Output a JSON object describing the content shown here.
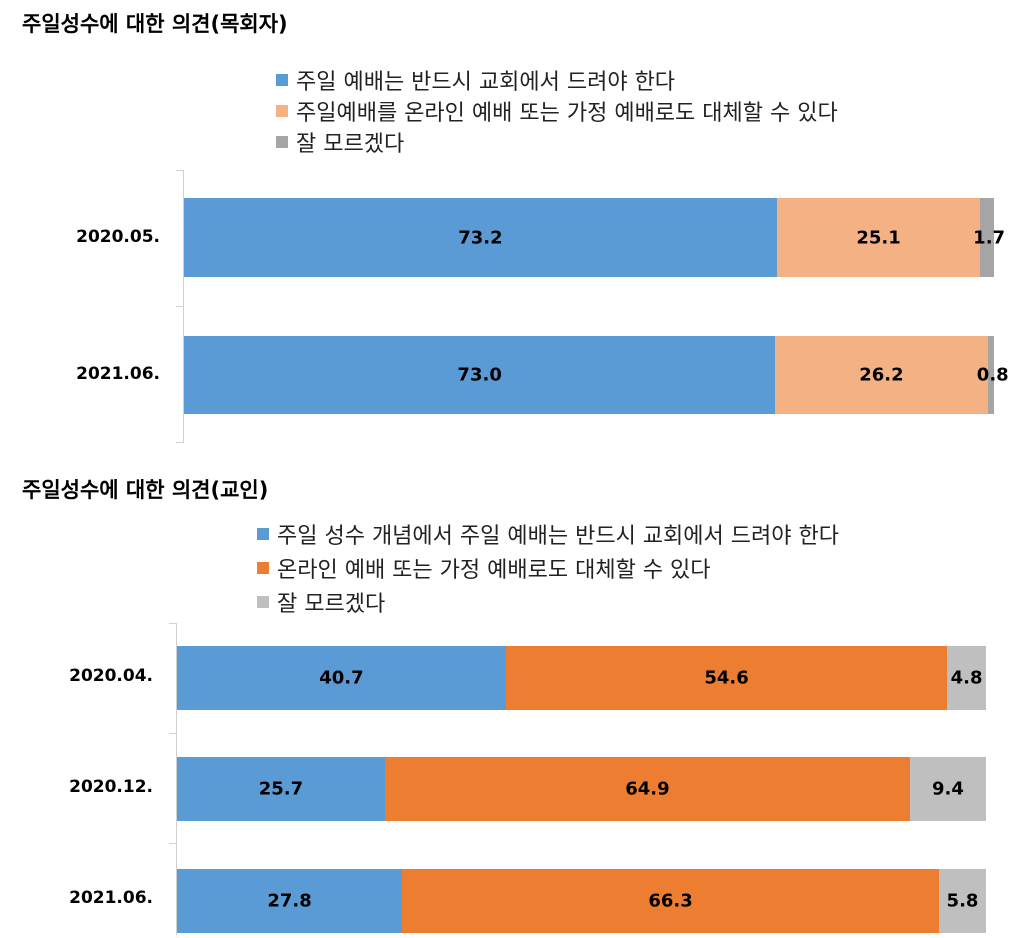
{
  "chart_data": [
    {
      "type": "bar",
      "orientation": "horizontal",
      "stacked": true,
      "title": "주일성수에 대한 의견(목회자)",
      "categories": [
        "2020.05.",
        "2021.06."
      ],
      "series": [
        {
          "name": "주일 예배는 반드시 교회에서 드려야 한다",
          "color": "#5b9bd5",
          "values": [
            73.2,
            73.0
          ],
          "labels": [
            "73.2",
            "73.0"
          ]
        },
        {
          "name": "주일예배를 온라인 예배 또는 가정 예배로도 대체할 수 있다",
          "color": "#f4b183",
          "values": [
            25.1,
            26.2
          ],
          "labels": [
            "25.1",
            "26.2"
          ]
        },
        {
          "name": "잘 모르겠다",
          "color": "#a5a5a5",
          "values": [
            1.7,
            0.8
          ],
          "labels": [
            "1.7",
            "0.8"
          ]
        }
      ],
      "xlim": [
        0,
        100
      ],
      "legend_position": "top"
    },
    {
      "type": "bar",
      "orientation": "horizontal",
      "stacked": true,
      "title": "주일성수에 대한 의견(교인)",
      "categories": [
        "2020.04.",
        "2020.12.",
        "2021.06."
      ],
      "series": [
        {
          "name": "주일 성수 개념에서 주일 예배는 반드시 교회에서 드려야 한다",
          "color": "#5b9bd5",
          "values": [
            40.7,
            25.7,
            27.8
          ],
          "labels": [
            "40.7",
            "25.7",
            "27.8"
          ]
        },
        {
          "name": "온라인 예배 또는 가정 예배로도 대체할 수 있다",
          "color": "#ed7d31",
          "values": [
            54.6,
            64.9,
            66.3
          ],
          "labels": [
            "54.6",
            "64.9",
            "66.3"
          ]
        },
        {
          "name": "잘 모르겠다",
          "color": "#bfbfbf",
          "values": [
            4.8,
            9.4,
            5.8
          ],
          "labels": [
            "4.8",
            "9.4",
            "5.8"
          ]
        }
      ],
      "xlim": [
        0,
        100
      ],
      "legend_position": "top"
    }
  ]
}
